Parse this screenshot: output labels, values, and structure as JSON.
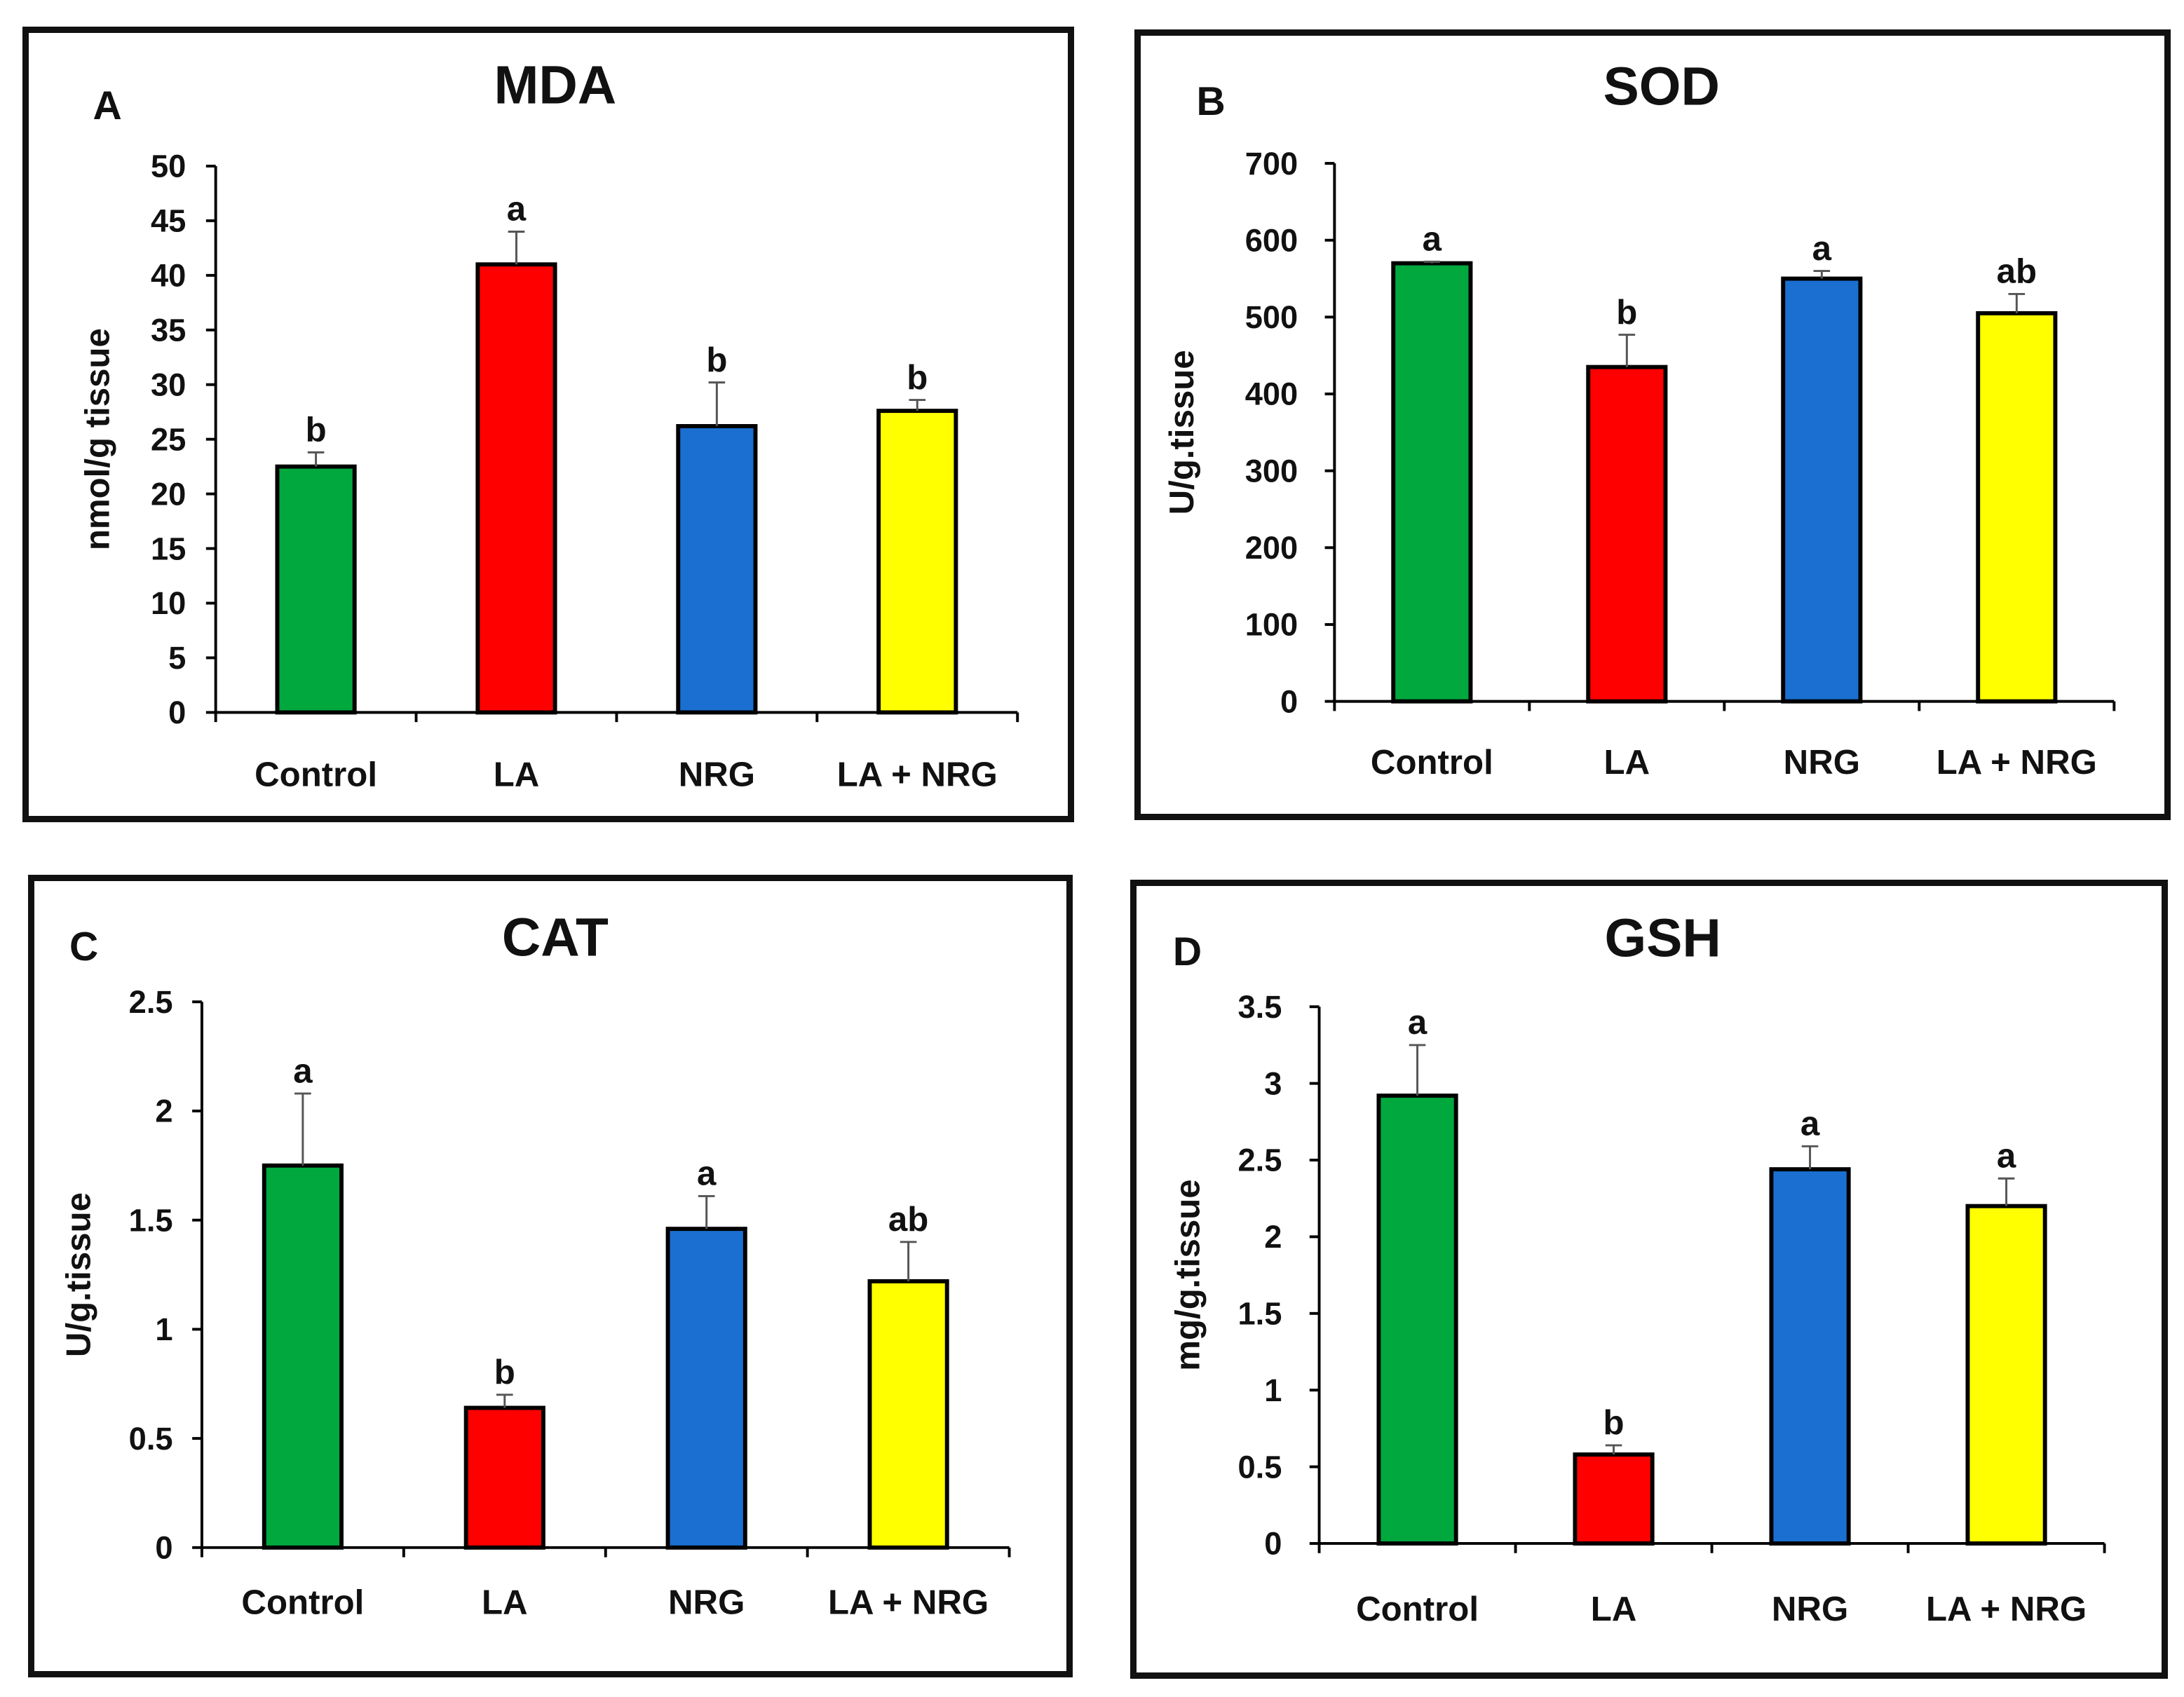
{
  "colors": {
    "Control": "#00a83e",
    "LA": "#ff0000",
    "NRG": "#1a6fd1",
    "LA + NRG": "#ffff00"
  },
  "chart_data": [
    {
      "panel": "A",
      "type": "bar",
      "title": "MDA",
      "ylabel": "nmol/g tissue",
      "xlabel": "",
      "categories": [
        "Control",
        "LA",
        "NRG",
        "LA + NRG"
      ],
      "values": [
        22.5,
        41,
        26.2,
        27.6
      ],
      "errors": [
        1.3,
        3,
        4,
        1
      ],
      "significance": [
        "b",
        "a",
        "b",
        "b"
      ],
      "ylim": [
        0,
        50
      ],
      "yticks": [
        0,
        5,
        10,
        15,
        20,
        25,
        30,
        35,
        40,
        45,
        50
      ],
      "ytick_labels": [
        "0",
        "5",
        "10",
        "15",
        "20",
        "25",
        "30",
        "35",
        "40",
        "45",
        "50"
      ]
    },
    {
      "panel": "B",
      "type": "bar",
      "title": "SOD",
      "ylabel": "U/g.tissue",
      "xlabel": "",
      "categories": [
        "Control",
        "LA",
        "NRG",
        "LA + NRG"
      ],
      "values": [
        570,
        435,
        550,
        505
      ],
      "errors": [
        2,
        42,
        10,
        25
      ],
      "significance": [
        "a",
        "b",
        "a",
        "ab"
      ],
      "ylim": [
        0,
        700
      ],
      "yticks": [
        0,
        100,
        200,
        300,
        400,
        500,
        600,
        700
      ],
      "ytick_labels": [
        "0",
        "100",
        "200",
        "300",
        "400",
        "500",
        "600",
        "700"
      ]
    },
    {
      "panel": "C",
      "type": "bar",
      "title": "CAT",
      "ylabel": "U/g.tissue",
      "xlabel": "",
      "categories": [
        "Control",
        "LA",
        "NRG",
        "LA + NRG"
      ],
      "values": [
        1.75,
        0.64,
        1.46,
        1.22
      ],
      "errors": [
        0.33,
        0.06,
        0.15,
        0.18
      ],
      "significance": [
        "a",
        "b",
        "a",
        "ab"
      ],
      "ylim": [
        0,
        2.5
      ],
      "yticks": [
        0,
        0.5,
        1,
        1.5,
        2,
        2.5
      ],
      "ytick_labels": [
        "0",
        "0.5",
        "1",
        "1.5",
        "2",
        "2.5"
      ]
    },
    {
      "panel": "D",
      "type": "bar",
      "title": "GSH",
      "ylabel": "mg/g.tissue",
      "xlabel": "",
      "categories": [
        "Control",
        "LA",
        "NRG",
        "LA + NRG"
      ],
      "values": [
        2.92,
        0.58,
        2.44,
        2.2
      ],
      "errors": [
        0.33,
        0.06,
        0.15,
        0.18
      ],
      "significance": [
        "a",
        "b",
        "a",
        "a"
      ],
      "ylim": [
        0,
        3.5
      ],
      "yticks": [
        0,
        0.5,
        1,
        1.5,
        2,
        2.5,
        3,
        3.5
      ],
      "ytick_labels": [
        "0",
        "0.5",
        "1",
        "1.5",
        "2",
        "2.5",
        "3",
        "3.5"
      ]
    }
  ]
}
